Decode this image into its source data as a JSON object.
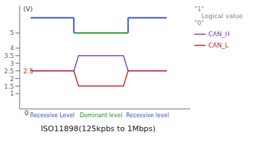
{
  "chart_data": {
    "type": "line",
    "title": "ISO11898(125kpbs to 1Mbps)",
    "xlim": [
      0,
      11
    ],
    "ylim": [
      0,
      6.8
    ],
    "yticks": [
      1,
      1.5,
      2,
      2.5,
      3,
      3.5,
      4,
      5
    ],
    "tick_labels": "y",
    "grid": false,
    "legend": "right",
    "series": [
      {
        "name": "Logical value",
        "high_label": "\"1\"",
        "low_label": "\"0\"",
        "label_color": "#888888",
        "x": [
          0.7,
          3.5,
          3.5,
          7.0,
          7.0,
          9.5
        ],
        "values": [
          6.0,
          6.0,
          5.0,
          5.0,
          6.0,
          6.0
        ],
        "colors": [
          "#3355cc",
          "#3355cc",
          "#229922",
          "#3355cc",
          "#3355cc"
        ]
      },
      {
        "name": "CAN_H",
        "color": "#7744bb",
        "x": [
          0.7,
          3.5,
          3.8,
          6.7,
          7.0,
          9.5
        ],
        "values": [
          2.5,
          2.5,
          3.5,
          3.5,
          2.5,
          2.5
        ]
      },
      {
        "name": "CAN_L",
        "color": "#cc2222",
        "x": [
          0.7,
          3.5,
          3.8,
          6.7,
          7.0,
          9.5
        ],
        "values": [
          2.5,
          2.5,
          1.5,
          1.5,
          2.5,
          2.5
        ]
      }
    ],
    "annotations": [
      {
        "text": "0",
        "x": 0.45,
        "y": -0.05
      },
      {
        "text": "(V)",
        "x": 0.15,
        "y": 6.6
      },
      {
        "text": "2.5",
        "x": 0.15,
        "y": 2.5,
        "color": "#cc2222"
      }
    ],
    "region_labels": [
      {
        "text": "Recessive Level",
        "x": [
          0.7,
          3.5
        ],
        "color": "#3355cc"
      },
      {
        "text": "Dominant level",
        "x": [
          3.5,
          7.0
        ],
        "color": "#229922"
      },
      {
        "text": "Recessive level",
        "x": [
          7.0,
          9.5
        ],
        "color": "#3355cc"
      }
    ]
  }
}
